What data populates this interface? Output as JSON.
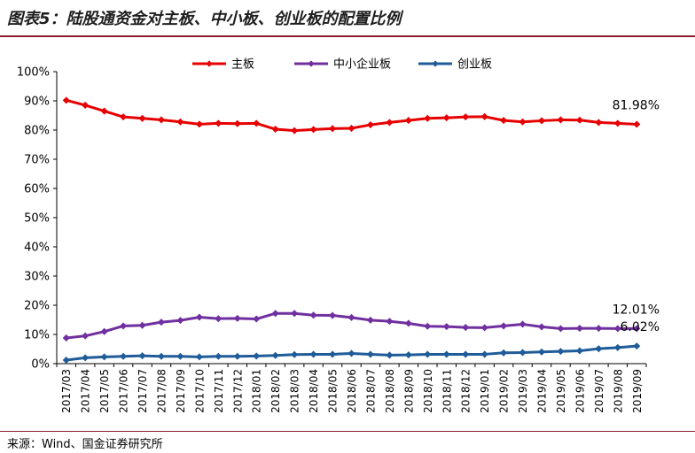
{
  "header": {
    "title": "图表5：陆股通资金对主板、中小板、创业板的配置比例"
  },
  "footer": {
    "source": "来源：Wind、国金证券研究所"
  },
  "chart_data": {
    "type": "line",
    "title": "",
    "xlabel": "",
    "ylabel": "",
    "ylim": [
      0,
      100
    ],
    "y_ticks": [
      "0%",
      "10%",
      "20%",
      "30%",
      "40%",
      "50%",
      "60%",
      "70%",
      "80%",
      "90%",
      "100%"
    ],
    "grid": false,
    "legend_position": "top",
    "categories": [
      "2017/03",
      "2017/04",
      "2017/05",
      "2017/06",
      "2017/07",
      "2017/08",
      "2017/09",
      "2017/10",
      "2017/11",
      "2017/12",
      "2018/01",
      "2018/02",
      "2018/03",
      "2018/04",
      "2018/05",
      "2018/06",
      "2018/07",
      "2018/08",
      "2018/09",
      "2018/10",
      "2018/11",
      "2018/12",
      "2019/01",
      "2019/02",
      "2019/03",
      "2019/04",
      "2019/05",
      "2019/06",
      "2019/07",
      "2019/08",
      "2019/09"
    ],
    "series": [
      {
        "name": "主板",
        "color": "#e60000",
        "values": [
          90.2,
          88.5,
          86.5,
          84.5,
          84.0,
          83.5,
          82.8,
          82.0,
          82.3,
          82.2,
          82.3,
          80.3,
          79.8,
          80.2,
          80.5,
          80.6,
          81.8,
          82.6,
          83.3,
          84.0,
          84.2,
          84.5,
          84.6,
          83.3,
          82.8,
          83.2,
          83.5,
          83.4,
          82.6,
          82.3,
          81.98
        ],
        "end_label": "81.98%"
      },
      {
        "name": "中小企业板",
        "color": "#7030a0",
        "values": [
          8.8,
          9.5,
          11.0,
          12.9,
          13.1,
          14.2,
          14.8,
          15.9,
          15.4,
          15.5,
          15.3,
          17.2,
          17.2,
          16.6,
          16.5,
          15.8,
          14.9,
          14.5,
          13.8,
          12.8,
          12.7,
          12.4,
          12.3,
          12.9,
          13.5,
          12.6,
          12.0,
          12.1,
          12.1,
          12.0,
          12.01
        ],
        "end_label": "12.01%"
      },
      {
        "name": "创业板",
        "color": "#1f5c99",
        "values": [
          1.2,
          2.0,
          2.3,
          2.5,
          2.7,
          2.5,
          2.5,
          2.3,
          2.5,
          2.5,
          2.6,
          2.8,
          3.1,
          3.2,
          3.2,
          3.5,
          3.2,
          2.9,
          3.0,
          3.2,
          3.2,
          3.2,
          3.2,
          3.7,
          3.8,
          4.0,
          4.2,
          4.4,
          5.1,
          5.5,
          6.02
        ],
        "end_label": "6.02%"
      }
    ]
  }
}
